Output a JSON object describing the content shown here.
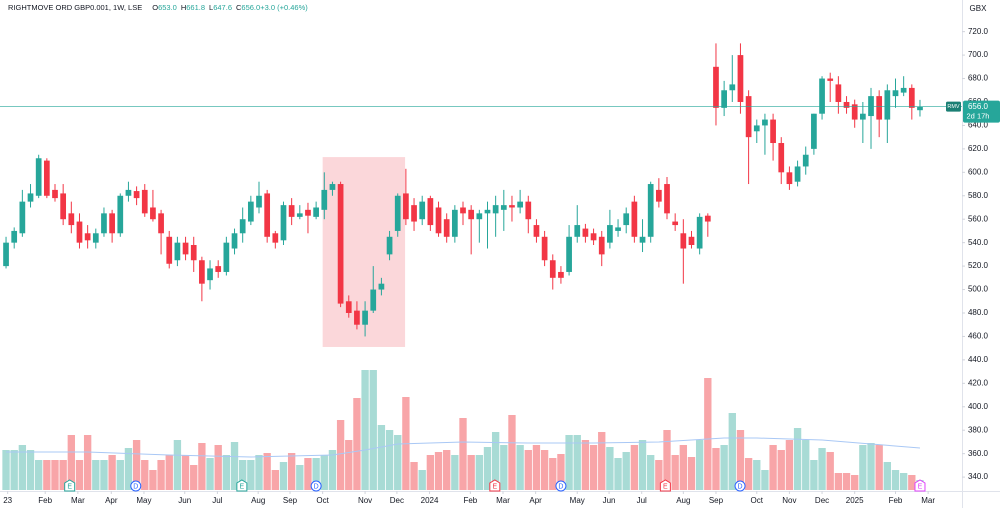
{
  "chart_data": {
    "type": "candlestick",
    "title": "RIGHTMOVE ORD GBP0.001, 1W, LSE",
    "ohlc_legend": [
      {
        "label": "O",
        "value": "653.0"
      },
      {
        "label": "H",
        "value": "661.8"
      },
      {
        "label": "L",
        "value": "647.6"
      },
      {
        "label": "C",
        "value": "656.0"
      },
      {
        "label": "",
        "value": "+3.0 (+0.46%)"
      }
    ],
    "currency": "GBX",
    "up_color": "#26a69a",
    "down_color": "#f23645",
    "volume_up_color": "#a8dbd5",
    "volume_down_color": "#f8a5a8",
    "volume_ma_color": "#a9c8f5",
    "highlight_color": "#f9c9cd",
    "open": [
      520,
      540,
      548,
      575,
      580,
      610,
      585,
      582,
      565,
      558,
      548,
      540,
      548,
      565,
      548,
      580,
      584,
      585,
      570,
      565,
      545,
      525,
      540,
      538,
      525,
      508,
      520,
      515,
      535,
      548,
      558,
      570,
      582,
      548,
      542,
      572,
      562,
      568,
      562,
      568,
      585,
      590,
      490,
      482,
      470,
      482,
      500,
      530,
      550,
      582,
      572,
      560,
      578,
      570,
      560,
      545,
      570,
      568,
      560,
      565,
      565,
      568,
      572,
      570,
      575,
      555,
      545,
      525,
      515,
      515,
      545,
      552,
      548,
      545,
      540,
      550,
      555,
      575,
      540,
      545,
      585,
      590,
      558,
      548,
      545,
      535,
      563,
      690,
      655,
      670,
      700,
      665,
      635,
      640,
      645,
      625,
      600,
      592,
      605,
      620,
      650,
      680,
      675,
      660,
      658,
      645,
      648,
      665,
      645,
      665,
      668,
      672,
      653
    ],
    "high": [
      545,
      553,
      585,
      590,
      615,
      612,
      590,
      590,
      575,
      565,
      555,
      552,
      570,
      568,
      582,
      592,
      588,
      590,
      585,
      568,
      550,
      545,
      545,
      545,
      528,
      525,
      525,
      545,
      552,
      570,
      580,
      592,
      585,
      550,
      575,
      578,
      572,
      574,
      575,
      600,
      592,
      592,
      495,
      490,
      490,
      520,
      510,
      550,
      582,
      603,
      578,
      580,
      580,
      575,
      565,
      572,
      575,
      572,
      568,
      575,
      580,
      585,
      580,
      585,
      580,
      560,
      550,
      530,
      520,
      555,
      572,
      556,
      552,
      550,
      568,
      560,
      570,
      580,
      560,
      592,
      595,
      596,
      565,
      560,
      550,
      565,
      565,
      710,
      678,
      700,
      710,
      670,
      645,
      650,
      650,
      630,
      605,
      610,
      622,
      650,
      682,
      685,
      682,
      665,
      662,
      660,
      672,
      670,
      675,
      680,
      682,
      675,
      661.8
    ],
    "low": [
      518,
      535,
      545,
      570,
      578,
      578,
      575,
      555,
      548,
      535,
      535,
      535,
      545,
      540,
      545,
      575,
      572,
      562,
      558,
      530,
      518,
      520,
      525,
      515,
      490,
      500,
      510,
      512,
      530,
      540,
      555,
      565,
      540,
      535,
      538,
      555,
      560,
      548,
      560,
      560,
      580,
      485,
      476,
      466,
      460,
      480,
      495,
      525,
      545,
      555,
      550,
      555,
      550,
      545,
      540,
      540,
      555,
      530,
      540,
      535,
      545,
      550,
      558,
      565,
      548,
      540,
      520,
      500,
      505,
      512,
      540,
      540,
      538,
      520,
      535,
      545,
      548,
      540,
      532,
      540,
      570,
      560,
      550,
      505,
      535,
      530,
      545,
      640,
      648,
      660,
      650,
      590,
      625,
      615,
      610,
      590,
      585,
      588,
      598,
      615,
      645,
      660,
      650,
      650,
      638,
      625,
      620,
      630,
      625,
      655,
      665,
      645,
      647.6
    ],
    "close": [
      540,
      550,
      575,
      582,
      612,
      580,
      578,
      560,
      555,
      540,
      542,
      548,
      565,
      548,
      580,
      585,
      578,
      565,
      560,
      548,
      522,
      540,
      530,
      525,
      505,
      518,
      515,
      540,
      548,
      560,
      575,
      580,
      545,
      540,
      572,
      562,
      565,
      563,
      570,
      585,
      590,
      488,
      480,
      470,
      482,
      500,
      505,
      545,
      580,
      560,
      558,
      575,
      555,
      548,
      545,
      568,
      565,
      560,
      565,
      568,
      572,
      572,
      570,
      575,
      560,
      545,
      525,
      510,
      510,
      545,
      555,
      545,
      542,
      530,
      555,
      553,
      565,
      545,
      545,
      590,
      575,
      565,
      555,
      535,
      538,
      562,
      558,
      655,
      670,
      675,
      660,
      630,
      640,
      645,
      625,
      600,
      590,
      605,
      615,
      650,
      680,
      678,
      660,
      655,
      645,
      650,
      665,
      645,
      670,
      670,
      672,
      655,
      656
    ],
    "volume": [
      40,
      40,
      45,
      40,
      30,
      30,
      30,
      30,
      55,
      30,
      55,
      30,
      30,
      35,
      30,
      42,
      50,
      30,
      20,
      30,
      35,
      50,
      35,
      25,
      47,
      32,
      45,
      35,
      48,
      30,
      30,
      35,
      37,
      20,
      28,
      37,
      25,
      32,
      32,
      35,
      40,
      70,
      50,
      92,
      120,
      120,
      65,
      60,
      55,
      93,
      28,
      20,
      35,
      38,
      40,
      35,
      72,
      35,
      35,
      43,
      58,
      45,
      75,
      45,
      40,
      45,
      40,
      32,
      36,
      55,
      55,
      50,
      45,
      58,
      43,
      32,
      38,
      45,
      50,
      35,
      30,
      60,
      35,
      45,
      33,
      50,
      112,
      42,
      45,
      77,
      60,
      32,
      30,
      20,
      45,
      40,
      50,
      62,
      50,
      30,
      42,
      38,
      17,
      17,
      15,
      45,
      47,
      45,
      28,
      20,
      17,
      15,
      10
    ],
    "volume_ylim": [
      0,
      150
    ],
    "volume_ma": {
      "x": [
        0,
        10,
        20,
        30,
        40,
        44,
        48,
        56,
        64,
        72,
        80,
        88,
        92,
        100,
        106,
        112
      ],
      "values": [
        38,
        38,
        35,
        33,
        35,
        40,
        46,
        48,
        47,
        47,
        48,
        52,
        52,
        50,
        46,
        42
      ]
    },
    "xlim": [
      -0.74,
      117.15
    ],
    "xticks": [
      {
        "value": 0.2,
        "label": "23"
      },
      {
        "value": 4.8,
        "label": "Feb"
      },
      {
        "value": 8.8,
        "label": "Mar"
      },
      {
        "value": 12.9,
        "label": "Apr"
      },
      {
        "value": 16.9,
        "label": "May"
      },
      {
        "value": 21.9,
        "label": "Jun"
      },
      {
        "value": 25.9,
        "label": "Jul"
      },
      {
        "value": 30.9,
        "label": "Aug"
      },
      {
        "value": 34.8,
        "label": "Sep"
      },
      {
        "value": 38.8,
        "label": "Oct"
      },
      {
        "value": 44.0,
        "label": "Nov"
      },
      {
        "value": 47.9,
        "label": "Dec"
      },
      {
        "value": 51.9,
        "label": "2024"
      },
      {
        "value": 56.9,
        "label": "Feb"
      },
      {
        "value": 60.9,
        "label": "Mar"
      },
      {
        "value": 64.9,
        "label": "Apr"
      },
      {
        "value": 70.0,
        "label": "May"
      },
      {
        "value": 73.9,
        "label": "Jun"
      },
      {
        "value": 77.9,
        "label": "Jul"
      },
      {
        "value": 83.0,
        "label": "Aug"
      },
      {
        "value": 87.0,
        "label": "Sep"
      },
      {
        "value": 92.0,
        "label": "Oct"
      },
      {
        "value": 96.0,
        "label": "Nov"
      },
      {
        "value": 100.0,
        "label": "Dec"
      },
      {
        "value": 104.0,
        "label": "2025"
      },
      {
        "value": 109.0,
        "label": "Feb"
      },
      {
        "value": 113.0,
        "label": "Mar"
      }
    ],
    "ylim": [
      329,
      747
    ],
    "yticks": [
      {
        "value": 340,
        "label": "340.0"
      },
      {
        "value": 360,
        "label": "360.0"
      },
      {
        "value": 380,
        "label": "380.0"
      },
      {
        "value": 400,
        "label": "400.0"
      },
      {
        "value": 420,
        "label": "420.0"
      },
      {
        "value": 440,
        "label": "440.0"
      },
      {
        "value": 460,
        "label": "460.0"
      },
      {
        "value": 480,
        "label": "480.0"
      },
      {
        "value": 500,
        "label": "500.0"
      },
      {
        "value": 520,
        "label": "520.0"
      },
      {
        "value": 540,
        "label": "540.0"
      },
      {
        "value": 560,
        "label": "560.0"
      },
      {
        "value": 580,
        "label": "580.0"
      },
      {
        "value": 600,
        "label": "600.0"
      },
      {
        "value": 620,
        "label": "620.0"
      },
      {
        "value": 640,
        "label": "640.0"
      },
      {
        "value": 660,
        "label": "660.0"
      },
      {
        "value": 680,
        "label": "680.0"
      },
      {
        "value": 700,
        "label": "700.0"
      },
      {
        "value": 720,
        "label": "720.0"
      }
    ],
    "grid": false,
    "last_price": {
      "symbol": "RMV",
      "value": 656.0,
      "label": "656.0",
      "countdown": "2d 17h"
    },
    "highlight": {
      "x": [
        38.8,
        48.9
      ],
      "y": [
        451,
        613
      ]
    },
    "events": [
      {
        "x": 7.8,
        "label": "E",
        "shape": "flag",
        "color": "#26a69a"
      },
      {
        "x": 15.9,
        "label": "D",
        "shape": "circle",
        "color": "#2962ff"
      },
      {
        "x": 28.9,
        "label": "E",
        "shape": "flag",
        "color": "#26a69a"
      },
      {
        "x": 38.0,
        "label": "D",
        "shape": "circle",
        "color": "#2962ff"
      },
      {
        "x": 59.9,
        "label": "E",
        "shape": "flag",
        "color": "#f23645"
      },
      {
        "x": 68.0,
        "label": "D",
        "shape": "circle",
        "color": "#2962ff"
      },
      {
        "x": 80.8,
        "label": "E",
        "shape": "flag",
        "color": "#f23645"
      },
      {
        "x": 89.95,
        "label": "D",
        "shape": "circle",
        "color": "#2962ff"
      },
      {
        "x": 112,
        "label": "E",
        "shape": "flag",
        "color": "#e040fb"
      }
    ]
  }
}
